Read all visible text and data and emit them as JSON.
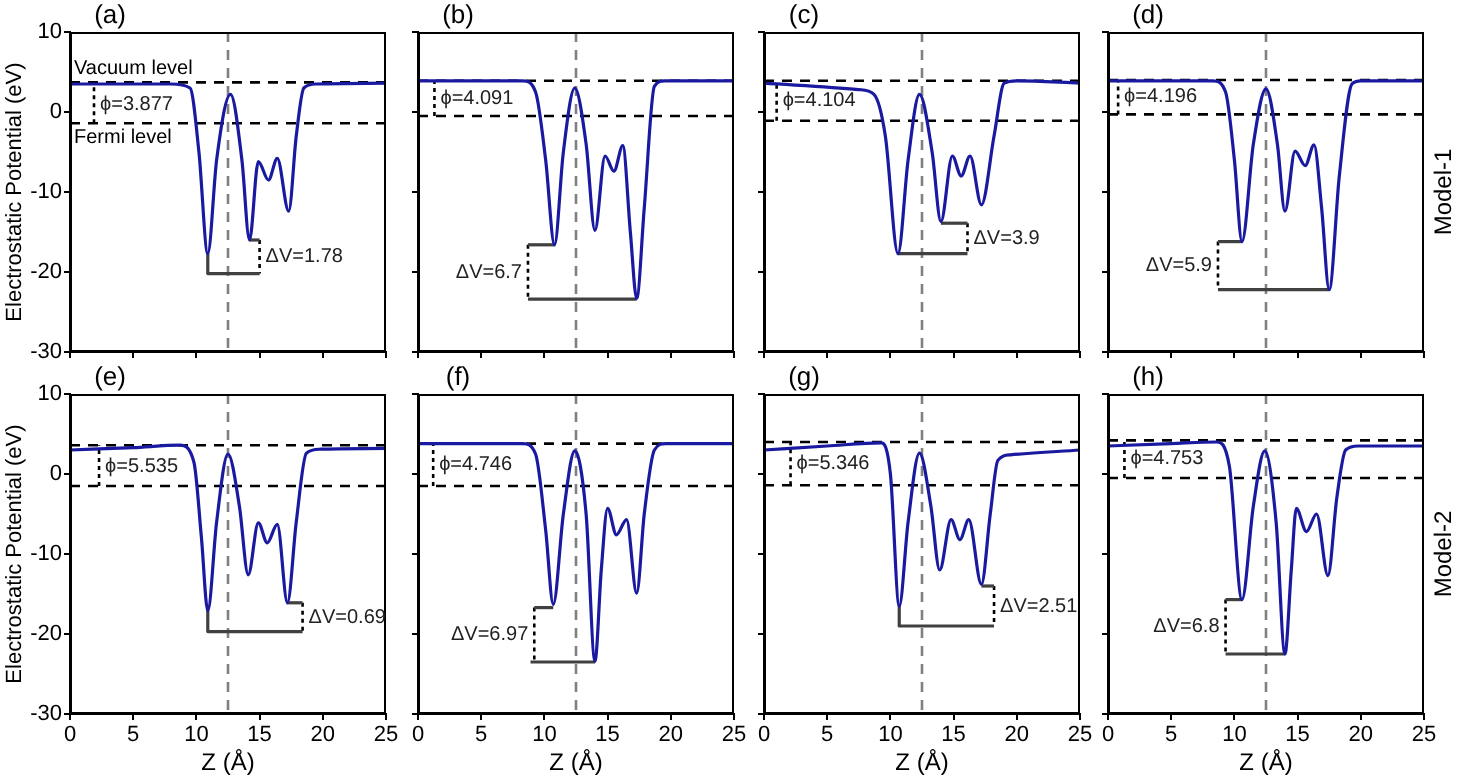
{
  "chart_data": [
    {
      "type": "line",
      "title": "(a)",
      "ylabel": "Electrostatic Potential (eV)",
      "xlim": [
        0,
        25
      ],
      "xticks": [
        0,
        5,
        10,
        15,
        20,
        25
      ],
      "ylim": [
        -30,
        10
      ],
      "yticks": [
        -30,
        -20,
        -10,
        0,
        10
      ],
      "tick_labels": "y",
      "grid": false,
      "legend": false,
      "marker": "none",
      "ref_lines": [
        {
          "axis": "y",
          "value": 3.7,
          "label": "Vacuum level",
          "color": "#000000",
          "line_style": "dashed"
        },
        {
          "axis": "y",
          "value": -1.4,
          "label": "Fermi level",
          "color": "#000000",
          "line_style": "dashed"
        },
        {
          "axis": "x",
          "value": 12.5,
          "color": "#808080",
          "line_style": "dashed"
        }
      ],
      "annotations": [
        {
          "text": "ϕ=3.877",
          "x": 1.9,
          "y": 1.0
        },
        {
          "text": "ΔV=1.78",
          "x": 15.0,
          "y": -18.1
        }
      ],
      "series": [
        {
          "color": "#1a1aa0",
          "x": [
            0,
            8,
            9.5,
            10.2,
            10.9,
            11.6,
            12.7,
            13.6,
            14.2,
            14.9,
            15.7,
            16.4,
            17.3,
            17.9,
            18.5,
            19.5,
            25
          ],
          "values": [
            3.5,
            3.5,
            3.0,
            -5,
            -17.7,
            -6,
            2.2,
            -6,
            -16.0,
            -6.2,
            -8.5,
            -5.8,
            -12.4,
            -3,
            3.0,
            3.5,
            3.6
          ]
        },
        {
          "color": "#000000",
          "line_style": "dotted",
          "x": [
            1.9,
            1.9
          ],
          "values": [
            -1.4,
            3.7
          ]
        },
        {
          "color": "#404040",
          "x": [
            10.9,
            10.9,
            15.0
          ],
          "values": [
            -17.7,
            -20.2,
            -20.2
          ]
        },
        {
          "color": "#404040",
          "x": [
            14.2,
            15.0
          ],
          "values": [
            -16.0,
            -16.0
          ]
        },
        {
          "color": "#000000",
          "line_style": "dotted",
          "x": [
            15.0,
            15.0
          ],
          "values": [
            -16.0,
            -20.2
          ]
        }
      ]
    },
    {
      "type": "line",
      "title": "(b)",
      "xlim": [
        0,
        25
      ],
      "xticks": [
        0,
        5,
        10,
        15,
        20,
        25
      ],
      "ylim": [
        -30,
        10
      ],
      "yticks": [
        -30,
        -20,
        -10,
        0,
        10
      ],
      "tick_labels": false,
      "grid": false,
      "legend": false,
      "marker": "none",
      "ref_lines": [
        {
          "axis": "y",
          "value": 3.9,
          "color": "#000000",
          "line_style": "dashed"
        },
        {
          "axis": "y",
          "value": -0.5,
          "color": "#000000",
          "line_style": "dashed"
        },
        {
          "axis": "x",
          "value": 12.5,
          "color": "#808080",
          "line_style": "dashed"
        }
      ],
      "annotations": [
        {
          "text": "ϕ=4.091",
          "x": 1.3,
          "y": 1.7
        },
        {
          "text": "ΔV=6.7",
          "x": 8.7,
          "y": -20.0
        }
      ],
      "series": [
        {
          "color": "#1a1aa0",
          "x": [
            0,
            8.3,
            9.3,
            10.1,
            10.8,
            11.5,
            12.4,
            13.3,
            14.0,
            14.8,
            15.5,
            16.2,
            16.8,
            17.3,
            17.9,
            18.7,
            19.5,
            25
          ],
          "values": [
            3.9,
            3.9,
            2.5,
            -6,
            -16.6,
            -5,
            3.0,
            -4,
            -14.8,
            -5.5,
            -7.4,
            -4.2,
            -15,
            -23.3,
            -12,
            3.2,
            3.9,
            3.9
          ]
        },
        {
          "color": "#000000",
          "line_style": "dotted",
          "x": [
            1.3,
            1.3
          ],
          "values": [
            -0.5,
            3.9
          ]
        },
        {
          "color": "#404040",
          "x": [
            10.8,
            8.7
          ],
          "values": [
            -16.6,
            -16.6
          ]
        },
        {
          "color": "#404040",
          "x": [
            8.7,
            17.3
          ],
          "values": [
            -23.4,
            -23.4
          ]
        },
        {
          "color": "#000000",
          "line_style": "dotted",
          "x": [
            8.7,
            8.7
          ],
          "values": [
            -16.6,
            -23.4
          ]
        }
      ]
    },
    {
      "type": "line",
      "title": "(c)",
      "xlim": [
        0,
        25
      ],
      "xticks": [
        0,
        5,
        10,
        15,
        20,
        25
      ],
      "ylim": [
        -30,
        10
      ],
      "yticks": [
        -30,
        -20,
        -10,
        0,
        10
      ],
      "tick_labels": false,
      "grid": false,
      "legend": false,
      "marker": "none",
      "ref_lines": [
        {
          "axis": "y",
          "value": 3.9,
          "color": "#000000",
          "line_style": "dashed"
        },
        {
          "axis": "y",
          "value": -1.1,
          "color": "#000000",
          "line_style": "dashed"
        },
        {
          "axis": "x",
          "value": 12.5,
          "color": "#808080",
          "line_style": "dashed"
        }
      ],
      "annotations": [
        {
          "text": "ϕ=4.104",
          "x": 1.0,
          "y": 1.4
        },
        {
          "text": "ΔV=3.9",
          "x": 16.1,
          "y": -15.8
        }
      ],
      "series": [
        {
          "color": "#1a1aa0",
          "x": [
            0,
            7.5,
            8.7,
            9.6,
            10.6,
            11.4,
            12.3,
            13.3,
            14.0,
            14.9,
            15.6,
            16.3,
            17.2,
            18.2,
            19.0,
            20,
            25
          ],
          "values": [
            3.6,
            2.8,
            2.2,
            -3,
            -17.7,
            -6,
            2.2,
            -5,
            -13.7,
            -5.5,
            -8.0,
            -5.5,
            -11.6,
            -3,
            3.6,
            3.9,
            3.6
          ]
        },
        {
          "color": "#000000",
          "line_style": "dotted",
          "x": [
            1.0,
            1.0
          ],
          "values": [
            -1.1,
            3.9
          ]
        },
        {
          "color": "#404040",
          "x": [
            10.6,
            16.1
          ],
          "values": [
            -17.7,
            -17.7
          ]
        },
        {
          "color": "#404040",
          "x": [
            14.0,
            16.1
          ],
          "values": [
            -13.9,
            -13.9
          ]
        },
        {
          "color": "#000000",
          "line_style": "dotted",
          "x": [
            16.1,
            16.1
          ],
          "values": [
            -13.9,
            -17.7
          ]
        }
      ]
    },
    {
      "type": "line",
      "title": "(d)",
      "y2label": "Model-1",
      "xlim": [
        0,
        25
      ],
      "xticks": [
        0,
        5,
        10,
        15,
        20,
        25
      ],
      "ylim": [
        -30,
        10
      ],
      "yticks": [
        -30,
        -20,
        -10,
        0,
        10
      ],
      "tick_labels": false,
      "grid": false,
      "legend": false,
      "marker": "none",
      "ref_lines": [
        {
          "axis": "y",
          "value": 4.0,
          "color": "#000000",
          "line_style": "dashed"
        },
        {
          "axis": "y",
          "value": -0.3,
          "color": "#000000",
          "line_style": "dashed"
        },
        {
          "axis": "x",
          "value": 12.5,
          "color": "#808080",
          "line_style": "dashed"
        }
      ],
      "annotations": [
        {
          "text": "ϕ=4.196",
          "x": 0.8,
          "y": 1.9
        },
        {
          "text": "ΔV=5.9",
          "x": 8.7,
          "y": -19.2
        }
      ],
      "series": [
        {
          "color": "#1a1aa0",
          "x": [
            0,
            8.3,
            9.3,
            10.0,
            10.6,
            11.5,
            12.5,
            13.4,
            14.0,
            14.8,
            15.6,
            16.3,
            16.9,
            17.5,
            18.3,
            19.3,
            20,
            25
          ],
          "values": [
            3.9,
            3.9,
            2.5,
            -6,
            -16.2,
            -4,
            2.9,
            -4,
            -12.4,
            -4.9,
            -6.7,
            -4.1,
            -12,
            -22.2,
            -8,
            3.5,
            3.9,
            3.9
          ]
        },
        {
          "color": "#000000",
          "line_style": "dotted",
          "x": [
            0.8,
            0.8
          ],
          "values": [
            -0.3,
            4.0
          ]
        },
        {
          "color": "#404040",
          "x": [
            10.6,
            8.7
          ],
          "values": [
            -16.2,
            -16.2
          ]
        },
        {
          "color": "#404040",
          "x": [
            8.7,
            17.5
          ],
          "values": [
            -22.2,
            -22.2
          ]
        },
        {
          "color": "#000000",
          "line_style": "dotted",
          "x": [
            8.7,
            8.7
          ],
          "values": [
            -16.2,
            -22.2
          ]
        }
      ]
    },
    {
      "type": "line",
      "title": "(e)",
      "xlabel": "Z (Å)",
      "ylabel": "Electrostatic Potential (eV)",
      "xlim": [
        0,
        25
      ],
      "xticks": [
        0,
        5,
        10,
        15,
        20,
        25
      ],
      "ylim": [
        -30,
        10
      ],
      "yticks": [
        -30,
        -20,
        -10,
        0,
        10
      ],
      "grid": false,
      "legend": false,
      "marker": "none",
      "ref_lines": [
        {
          "axis": "y",
          "value": 3.6,
          "color": "#000000",
          "line_style": "dashed"
        },
        {
          "axis": "y",
          "value": -1.5,
          "color": "#000000",
          "line_style": "dashed"
        },
        {
          "axis": "x",
          "value": 12.5,
          "color": "#808080",
          "line_style": "dashed"
        }
      ],
      "annotations": [
        {
          "text": "ϕ=5.535",
          "x": 2.3,
          "y": 1.0
        },
        {
          "text": "ΔV=0.69",
          "x": 18.4,
          "y": -17.9
        }
      ],
      "series": [
        {
          "color": "#1a1aa0",
          "x": [
            0,
            5,
            8.7,
            9.8,
            10.4,
            10.9,
            11.6,
            12.5,
            13.4,
            14.1,
            14.9,
            15.6,
            16.4,
            17.2,
            17.9,
            18.7,
            19.8,
            25
          ],
          "values": [
            3.0,
            3.3,
            3.6,
            1.5,
            -8,
            -17.1,
            -6,
            2.5,
            -4,
            -12.6,
            -6.1,
            -8.6,
            -6.3,
            -16.1,
            -6,
            2.6,
            3.1,
            3.2
          ]
        },
        {
          "color": "#000000",
          "line_style": "dotted",
          "x": [
            2.3,
            2.3
          ],
          "values": [
            -1.5,
            3.6
          ]
        },
        {
          "color": "#404040",
          "x": [
            10.9,
            10.9,
            18.4
          ],
          "values": [
            -17.1,
            -19.7,
            -19.7
          ]
        },
        {
          "color": "#404040",
          "x": [
            17.2,
            18.4
          ],
          "values": [
            -16.1,
            -16.1
          ]
        },
        {
          "color": "#000000",
          "line_style": "dotted",
          "x": [
            18.4,
            18.4
          ],
          "values": [
            -16.1,
            -19.7
          ]
        }
      ]
    },
    {
      "type": "line",
      "title": "(f)",
      "xlabel": "Z (Å)",
      "xlim": [
        0,
        25
      ],
      "xticks": [
        0,
        5,
        10,
        15,
        20,
        25
      ],
      "ylim": [
        -30,
        10
      ],
      "yticks": [
        -30,
        -20,
        -10,
        0,
        10
      ],
      "tick_labels": "x",
      "grid": false,
      "legend": false,
      "marker": "none",
      "ref_lines": [
        {
          "axis": "y",
          "value": 3.8,
          "color": "#000000",
          "line_style": "dashed"
        },
        {
          "axis": "y",
          "value": -1.5,
          "color": "#000000",
          "line_style": "dashed"
        },
        {
          "axis": "x",
          "value": 12.5,
          "color": "#808080",
          "line_style": "dashed"
        }
      ],
      "annotations": [
        {
          "text": "ϕ=4.746",
          "x": 1.2,
          "y": 1.2
        },
        {
          "text": "ΔV=6.97",
          "x": 9.2,
          "y": -20.1
        }
      ],
      "series": [
        {
          "color": "#1a1aa0",
          "x": [
            0,
            8.3,
            9.3,
            10.1,
            10.7,
            11.5,
            12.4,
            13.3,
            14.0,
            14.5,
            15.0,
            15.7,
            16.5,
            17.3,
            17.9,
            18.7,
            19.6,
            25
          ],
          "values": [
            3.8,
            3.8,
            2.5,
            -7,
            -16.3,
            -5,
            2.9,
            -5,
            -23.4,
            -12,
            -4.3,
            -7.6,
            -5.7,
            -14.9,
            -5,
            3.0,
            3.8,
            3.8
          ]
        },
        {
          "color": "#000000",
          "line_style": "dotted",
          "x": [
            1.2,
            1.2
          ],
          "values": [
            -1.5,
            3.8
          ]
        },
        {
          "color": "#404040",
          "x": [
            10.7,
            9.2
          ],
          "values": [
            -16.7,
            -16.7
          ]
        },
        {
          "color": "#404040",
          "x": [
            8.9,
            14.0
          ],
          "values": [
            -23.5,
            -23.5
          ]
        },
        {
          "color": "#000000",
          "line_style": "dotted",
          "x": [
            9.2,
            9.2
          ],
          "values": [
            -16.7,
            -23.5
          ]
        }
      ]
    },
    {
      "type": "line",
      "title": "(g)",
      "xlabel": "Z (Å)",
      "xlim": [
        0,
        25
      ],
      "xticks": [
        0,
        5,
        10,
        15,
        20,
        25
      ],
      "ylim": [
        -30,
        10
      ],
      "yticks": [
        -30,
        -20,
        -10,
        0,
        10
      ],
      "tick_labels": "x",
      "grid": false,
      "legend": false,
      "marker": "none",
      "ref_lines": [
        {
          "axis": "y",
          "value": 4.0,
          "color": "#000000",
          "line_style": "dashed"
        },
        {
          "axis": "y",
          "value": -1.4,
          "color": "#000000",
          "line_style": "dashed"
        },
        {
          "axis": "x",
          "value": 12.5,
          "color": "#808080",
          "line_style": "dashed"
        }
      ],
      "annotations": [
        {
          "text": "ϕ=5.346",
          "x": 2.1,
          "y": 1.3
        },
        {
          "text": "ΔV=2.51",
          "x": 18.2,
          "y": -16.5
        }
      ],
      "series": [
        {
          "color": "#1a1aa0",
          "x": [
            0,
            5,
            9.3,
            10.0,
            10.7,
            11.4,
            12.3,
            13.2,
            13.9,
            14.8,
            15.5,
            16.2,
            17.2,
            17.9,
            18.5,
            19.5,
            25
          ],
          "values": [
            3.0,
            3.5,
            3.9,
            0,
            -16.5,
            -6,
            2.6,
            -4,
            -12.0,
            -5.7,
            -8.2,
            -5.7,
            -13.8,
            -5,
            1.7,
            2.4,
            3.0
          ]
        },
        {
          "color": "#000000",
          "line_style": "dotted",
          "x": [
            2.1,
            2.1
          ],
          "values": [
            -1.4,
            4.0
          ]
        },
        {
          "color": "#404040",
          "x": [
            10.7,
            10.7,
            18.2
          ],
          "values": [
            -16.5,
            -19.0,
            -19.0
          ]
        },
        {
          "color": "#404040",
          "x": [
            17.2,
            18.2
          ],
          "values": [
            -14.0,
            -14.0
          ]
        },
        {
          "color": "#000000",
          "line_style": "dotted",
          "x": [
            18.2,
            18.2
          ],
          "values": [
            -14.0,
            -19.0
          ]
        }
      ]
    },
    {
      "type": "line",
      "title": "(h)",
      "xlabel": "Z (Å)",
      "y2label": "Model-2",
      "xlim": [
        0,
        25
      ],
      "xticks": [
        0,
        5,
        10,
        15,
        20,
        25
      ],
      "ylim": [
        -30,
        10
      ],
      "yticks": [
        -30,
        -20,
        -10,
        0,
        10
      ],
      "tick_labels": "x",
      "grid": false,
      "legend": false,
      "marker": "none",
      "ref_lines": [
        {
          "axis": "y",
          "value": 4.2,
          "color": "#000000",
          "line_style": "dashed"
        },
        {
          "axis": "y",
          "value": -0.5,
          "color": "#000000",
          "line_style": "dashed"
        },
        {
          "axis": "x",
          "value": 12.5,
          "color": "#808080",
          "line_style": "dashed"
        }
      ],
      "annotations": [
        {
          "text": "ϕ=4.753",
          "x": 1.3,
          "y": 1.9
        },
        {
          "text": "ΔV=6.8",
          "x": 9.3,
          "y": -19.1
        }
      ],
      "series": [
        {
          "color": "#1a1aa0",
          "x": [
            0,
            5,
            8.6,
            9.6,
            10.6,
            11.5,
            12.4,
            13.3,
            14.0,
            14.5,
            14.9,
            15.7,
            16.5,
            17.4,
            18.1,
            18.8,
            19.8,
            25
          ],
          "values": [
            3.5,
            3.8,
            4.0,
            1,
            -15.7,
            -4,
            2.9,
            -6,
            -22.5,
            -12,
            -4.3,
            -7.2,
            -5.0,
            -12.7,
            -3,
            3.0,
            3.5,
            3.5
          ]
        },
        {
          "color": "#000000",
          "line_style": "dotted",
          "x": [
            1.3,
            1.3
          ],
          "values": [
            -0.5,
            4.2
          ]
        },
        {
          "color": "#404040",
          "x": [
            10.6,
            9.3
          ],
          "values": [
            -15.7,
            -15.7
          ]
        },
        {
          "color": "#404040",
          "x": [
            9.3,
            14.0
          ],
          "values": [
            -22.5,
            -22.5
          ]
        },
        {
          "color": "#000000",
          "line_style": "dotted",
          "x": [
            9.3,
            9.3
          ],
          "values": [
            -15.7,
            -22.5
          ]
        }
      ]
    }
  ]
}
